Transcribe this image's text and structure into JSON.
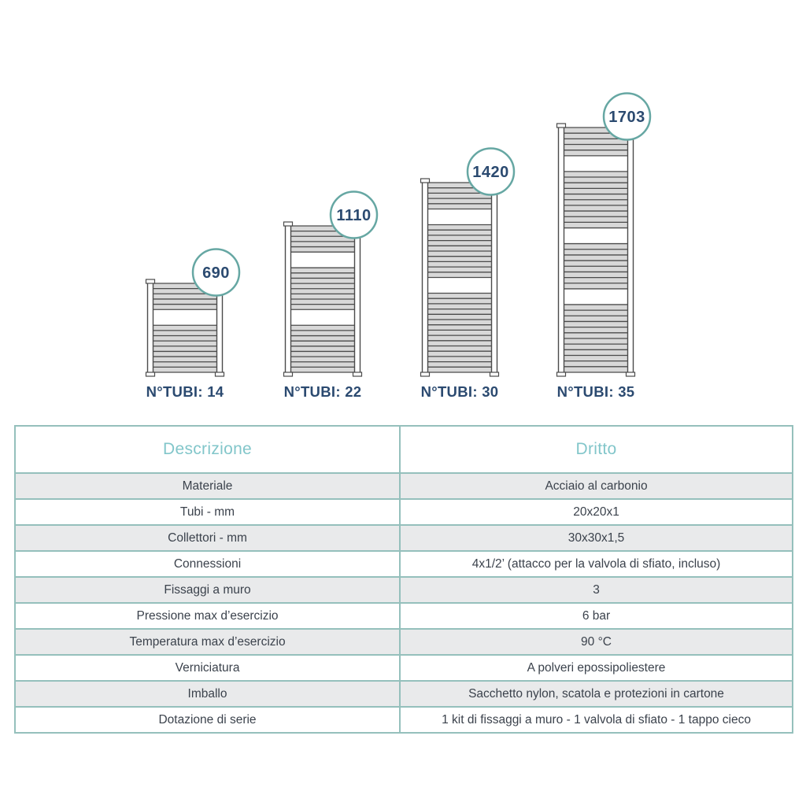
{
  "radiators": [
    {
      "height_mm": 690,
      "height_label": "690",
      "n_tubi": 14,
      "tubi_label": "N°TUBI: 14",
      "tube_groups": [
        5,
        9
      ]
    },
    {
      "height_mm": 1110,
      "height_label": "1110",
      "n_tubi": 22,
      "tubi_label": "N°TUBI: 22",
      "tube_groups": [
        5,
        8,
        9
      ]
    },
    {
      "height_mm": 1420,
      "height_label": "1420",
      "n_tubi": 30,
      "tubi_label": "N°TUBI: 30",
      "tube_groups": [
        5,
        10,
        15
      ]
    },
    {
      "height_mm": 1703,
      "height_label": "1703",
      "n_tubi": 35,
      "tubi_label": "N°TUBI: 35",
      "tube_groups": [
        5,
        10,
        8,
        12
      ]
    }
  ],
  "table": {
    "headers": [
      "Descrizione",
      "Dritto"
    ],
    "rows": [
      [
        "Materiale",
        "Acciaio al carbonio"
      ],
      [
        "Tubi - mm",
        "20x20x1"
      ],
      [
        "Collettori - mm",
        "30x30x1,5"
      ],
      [
        "Connessioni",
        "4x1/2’ (attacco per la valvola di sfiato, incluso)"
      ],
      [
        "Fissaggi a muro",
        "3"
      ],
      [
        "Pressione max d’esercizio",
        "6 bar"
      ],
      [
        "Temperatura max d’esercizio",
        "90 °C"
      ],
      [
        "Verniciatura",
        "A polveri epossipoliestere"
      ],
      [
        "Imballo",
        "Sacchetto nylon, scatola e protezioni in cartone"
      ],
      [
        "Dotazione di serie",
        "1 kit di fissaggi a muro - 1 valvola di sfiato - 1 tappo cieco"
      ]
    ]
  },
  "colors": {
    "circle_border": "#66a7a3",
    "table_border_outer": "#6aa6a2",
    "table_border_inner": "#95c0bc",
    "header_text": "#82c6ca",
    "navy_text": "#2b4a70",
    "cell_text": "#3b424c",
    "alt_row_bg": "#e9eaeb",
    "radiator_line": "#4b4b4b",
    "tube_fill": "#d8d8d8"
  }
}
